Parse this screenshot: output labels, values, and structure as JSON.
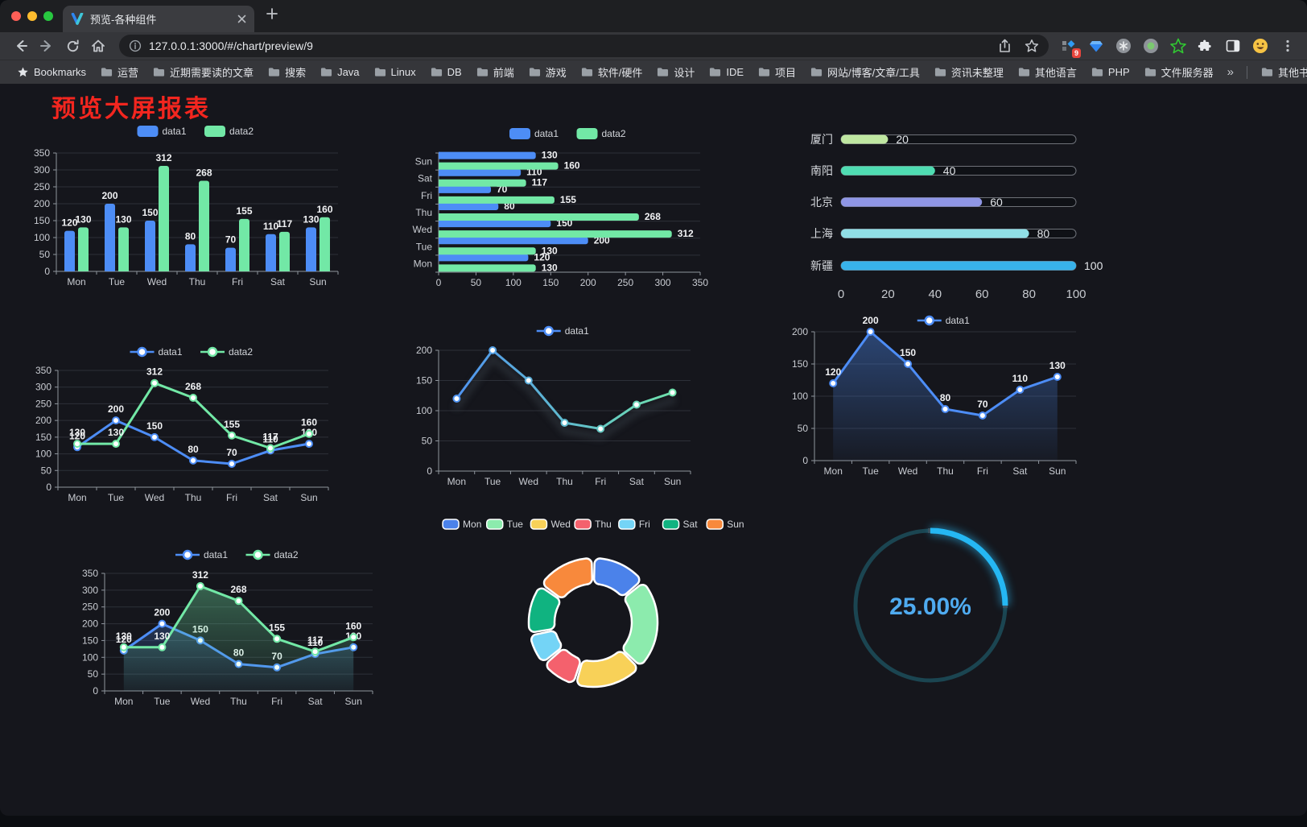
{
  "browser": {
    "window_controls": {
      "close": "#ff5f57",
      "minimize": "#febc2e",
      "maximize": "#28c840"
    },
    "tab": {
      "title": "预览-各种组件"
    },
    "toolbar": {
      "url": "127.0.0.1:3000/#/chart/preview/9",
      "extension_badge": "9"
    },
    "bookmarks_bar": {
      "root_label": "Bookmarks",
      "items": [
        "运营",
        "近期需要读的文章",
        "搜索",
        "Java",
        "Linux",
        "DB",
        "前端",
        "游戏",
        "软件/硬件",
        "设计",
        "IDE",
        "项目",
        "网站/博客/文章/工具",
        "资讯未整理",
        "其他语言",
        "PHP",
        "文件服务器"
      ],
      "overflow": "»",
      "other_bookmarks": "其他书签"
    }
  },
  "page": {
    "title": "预览大屏报表",
    "title_color": "#f3261f",
    "background": "#15161c"
  },
  "colors": {
    "data1": "#4d8df6",
    "data2": "#72e8a6",
    "axis_label": "#c9ccd2",
    "grid": "#2d3038",
    "axis_line": "#8f959d",
    "value_label": "#f1f2f4"
  },
  "chart_data": [
    {
      "id": "bar-grouped",
      "type": "bar",
      "categories": [
        "Mon",
        "Tue",
        "Wed",
        "Thu",
        "Fri",
        "Sat",
        "Sun"
      ],
      "series": [
        {
          "name": "data1",
          "color": "#4d8df6",
          "values": [
            120,
            200,
            150,
            80,
            70,
            110,
            130
          ]
        },
        {
          "name": "data2",
          "color": "#72e8a6",
          "values": [
            130,
            130,
            312,
            268,
            155,
            117,
            160
          ]
        }
      ],
      "ylim": [
        0,
        350
      ],
      "ytick_step": 50,
      "legend_position": "top",
      "value_labels": true,
      "grid": true
    },
    {
      "id": "hbar-grouped",
      "type": "hbar",
      "categories": [
        "Mon",
        "Tue",
        "Wed",
        "Thu",
        "Fri",
        "Sat",
        "Sun"
      ],
      "series": [
        {
          "name": "data1",
          "color": "#4d8df6",
          "values": [
            120,
            200,
            150,
            80,
            70,
            110,
            130
          ]
        },
        {
          "name": "data2",
          "color": "#72e8a6",
          "values": [
            130,
            130,
            312,
            268,
            155,
            117,
            160
          ]
        }
      ],
      "xlim": [
        0,
        350
      ],
      "xtick_step": 50,
      "legend_position": "top",
      "value_labels": true,
      "grid": true
    },
    {
      "id": "city-progress",
      "type": "progress",
      "max": 100,
      "xticks": [
        0,
        20,
        40,
        60,
        80,
        100
      ],
      "items": [
        {
          "label": "厦门",
          "value": 20,
          "color": "#bfe7a1"
        },
        {
          "label": "南阳",
          "value": 40,
          "color": "#4fdcb2"
        },
        {
          "label": "北京",
          "value": 60,
          "color": "#8f96e5"
        },
        {
          "label": "上海",
          "value": 80,
          "color": "#90dfe6"
        },
        {
          "label": "新疆",
          "value": 100,
          "color": "#38b2ea"
        }
      ]
    },
    {
      "id": "line-two",
      "type": "line",
      "categories": [
        "Mon",
        "Tue",
        "Wed",
        "Thu",
        "Fri",
        "Sat",
        "Sun"
      ],
      "series": [
        {
          "name": "data1",
          "color": "#4d8df6",
          "values": [
            120,
            200,
            150,
            80,
            70,
            110,
            130
          ]
        },
        {
          "name": "data2",
          "color": "#72e8a6",
          "values": [
            130,
            130,
            312,
            268,
            155,
            117,
            160
          ]
        }
      ],
      "ylim": [
        0,
        350
      ],
      "ytick_step": 50,
      "legend_position": "top",
      "value_labels": true,
      "markers": true
    },
    {
      "id": "line-gradient",
      "type": "line",
      "variant": "gradient",
      "categories": [
        "Mon",
        "Tue",
        "Wed",
        "Thu",
        "Fri",
        "Sat",
        "Sun"
      ],
      "series": [
        {
          "name": "data1",
          "color": "#4d8df6",
          "values": [
            120,
            200,
            150,
            80,
            70,
            110,
            130
          ]
        }
      ],
      "gradient": [
        "#4d8df6",
        "#72e8a6"
      ],
      "ylim": [
        0,
        200
      ],
      "ytick_step": 50,
      "legend_position": "top",
      "value_labels": false,
      "markers": true
    },
    {
      "id": "line-area-single",
      "type": "line",
      "variant": "area",
      "categories": [
        "Mon",
        "Tue",
        "Wed",
        "Thu",
        "Fri",
        "Sat",
        "Sun"
      ],
      "series": [
        {
          "name": "data1",
          "color": "#4d8df6",
          "values": [
            120,
            200,
            150,
            80,
            70,
            110,
            130
          ]
        }
      ],
      "ylim": [
        0,
        200
      ],
      "ytick_step": 50,
      "legend_position": "top",
      "value_labels": true,
      "markers": true
    },
    {
      "id": "line-area-two",
      "type": "line",
      "variant": "area",
      "categories": [
        "Mon",
        "Tue",
        "Wed",
        "Thu",
        "Fri",
        "Sat",
        "Sun"
      ],
      "series": [
        {
          "name": "data1",
          "color": "#4d8df6",
          "values": [
            120,
            200,
            150,
            80,
            70,
            110,
            130
          ]
        },
        {
          "name": "data2",
          "color": "#72e8a6",
          "values": [
            130,
            130,
            312,
            268,
            155,
            117,
            160
          ]
        }
      ],
      "ylim": [
        0,
        350
      ],
      "ytick_step": 50,
      "legend_position": "top",
      "value_labels": true,
      "markers": true
    },
    {
      "id": "donut",
      "type": "donut",
      "categories": [
        "Mon",
        "Tue",
        "Wed",
        "Thu",
        "Fri",
        "Sat",
        "Sun"
      ],
      "values": [
        120,
        200,
        150,
        80,
        70,
        110,
        130
      ],
      "colors": [
        "#4b82ea",
        "#8cebad",
        "#f8d158",
        "#f4616d",
        "#74d4f6",
        "#10b380",
        "#f8893c"
      ],
      "legend_position": "top"
    },
    {
      "id": "gauge",
      "type": "gauge",
      "percent": 25,
      "label": "25.00%",
      "color": "#25b7f3",
      "track_color": "#1b4551",
      "text_color": "#4fabf0"
    }
  ]
}
